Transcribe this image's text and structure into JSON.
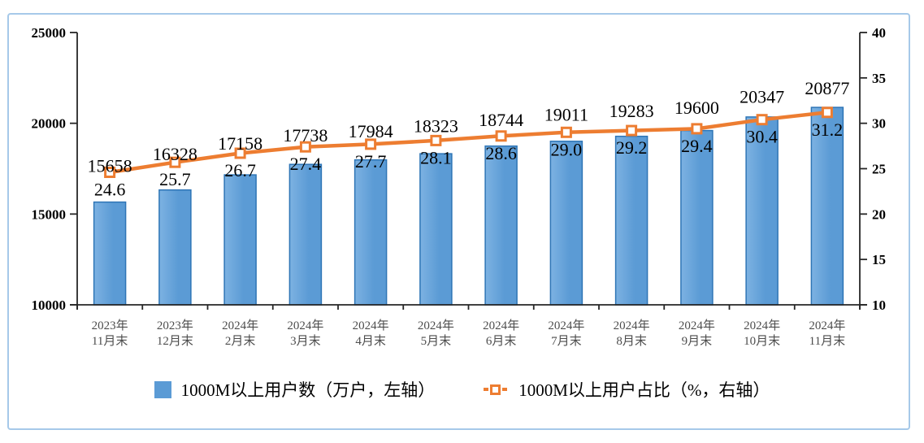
{
  "chart_data": {
    "type": "combo",
    "title": "",
    "categories": [
      "2023年11月末",
      "2023年12月末",
      "2024年2月末",
      "2024年3月末",
      "2024年4月末",
      "2024年5月末",
      "2024年6月末",
      "2024年7月末",
      "2024年8月末",
      "2024年9月末",
      "2024年10月末",
      "2024年11月末"
    ],
    "series": [
      {
        "name": "1000M以上用户数（万户，左轴）",
        "chart_type": "bar",
        "axis": "left",
        "values": [
          15658,
          16328,
          17158,
          17738,
          17984,
          18323,
          18744,
          19011,
          19283,
          19600,
          20347,
          20877
        ]
      },
      {
        "name": "1000M以上用户占比（%，右轴）",
        "chart_type": "line",
        "axis": "right",
        "values": [
          24.6,
          25.7,
          26.7,
          27.4,
          27.7,
          28.1,
          28.6,
          29.0,
          29.2,
          29.4,
          30.4,
          31.2
        ],
        "label_decimals": 1
      }
    ],
    "left_axis": {
      "min": 10000,
      "max": 25000,
      "ticks": [
        25000,
        20000,
        15000,
        10000
      ]
    },
    "right_axis": {
      "min": 10,
      "max": 40,
      "ticks": [
        40,
        35,
        30,
        25,
        20,
        15,
        10
      ]
    },
    "grid": false,
    "legend_position": "bottom",
    "colors": {
      "bar_fill": "#5B9BD5",
      "bar_fill_light": "#7DB2E2",
      "bar_border": "#2E75B6",
      "line": "#ED7D31",
      "marker_fill": "#FFFFFF",
      "axis": "#262626",
      "data_label": "#000000",
      "x_label": "#4D4D4D",
      "frame_border": "#A6C9E9"
    }
  }
}
